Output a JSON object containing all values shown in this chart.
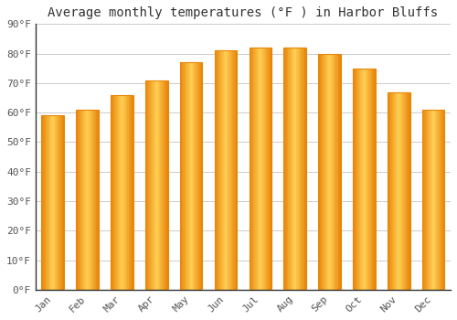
{
  "title": "Average monthly temperatures (°F ) in Harbor Bluffs",
  "months": [
    "Jan",
    "Feb",
    "Mar",
    "Apr",
    "May",
    "Jun",
    "Jul",
    "Aug",
    "Sep",
    "Oct",
    "Nov",
    "Dec"
  ],
  "values": [
    59,
    61,
    66,
    71,
    77,
    81,
    82,
    82,
    80,
    75,
    67,
    61
  ],
  "bar_color_main": "#FFA520",
  "bar_color_edge": "#E8860A",
  "ylim": [
    0,
    90
  ],
  "yticks": [
    0,
    10,
    20,
    30,
    40,
    50,
    60,
    70,
    80,
    90
  ],
  "ytick_labels": [
    "0°F",
    "10°F",
    "20°F",
    "30°F",
    "40°F",
    "50°F",
    "60°F",
    "70°F",
    "80°F",
    "90°F"
  ],
  "background_color": "#FFFFFF",
  "plot_bg_color": "#FFFFFF",
  "grid_color": "#CCCCCC",
  "spine_color": "#333333",
  "tick_color": "#555555",
  "title_fontsize": 10,
  "tick_fontsize": 8,
  "font_family": "monospace",
  "bar_width": 0.65
}
